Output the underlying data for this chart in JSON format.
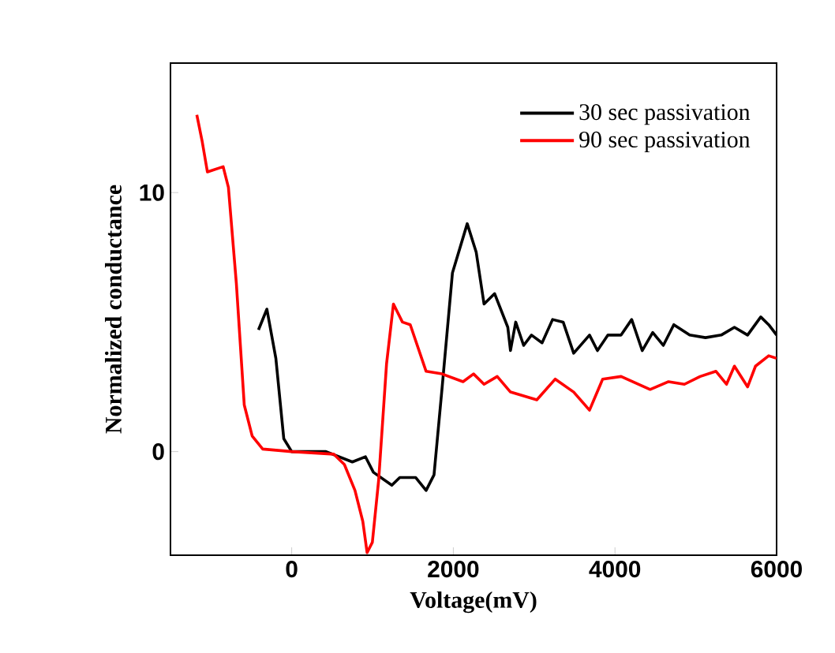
{
  "chart_data": {
    "type": "line",
    "xlabel": "Voltage(mV)",
    "ylabel": "Normalized conductance",
    "xlim": [
      -1500,
      6000
    ],
    "ylim": [
      -4,
      15
    ],
    "xticks": [
      0,
      2000,
      4000,
      6000
    ],
    "yticks": [
      0,
      10
    ],
    "legend": "top right",
    "grid": false,
    "marker": "none",
    "line_style": "solid",
    "series": [
      {
        "name": "30 sec passivation",
        "color": "#000000",
        "x": [
          -411,
          -307,
          -196,
          -98,
          0,
          424,
          750,
          913,
          1011,
          1239,
          1337,
          1533,
          1663,
          1761,
          1859,
          1989,
          2172,
          2283,
          2380,
          2511,
          2674,
          2707,
          2772,
          2870,
          2967,
          3098,
          3228,
          3359,
          3489,
          3685,
          3783,
          3913,
          4076,
          4207,
          4337,
          4467,
          4598,
          4728,
          4924,
          5120,
          5315,
          5478,
          5641,
          5804,
          5902,
          6000
        ],
        "values": [
          4.7,
          5.5,
          3.6,
          0.5,
          0,
          0,
          -0.4,
          -0.2,
          -0.8,
          -1.3,
          -1.0,
          -1.0,
          -1.5,
          -0.9,
          2.4,
          6.9,
          8.8,
          7.7,
          5.7,
          6.1,
          4.8,
          3.9,
          5.0,
          4.1,
          4.5,
          4.2,
          5.1,
          5.0,
          3.8,
          4.5,
          3.9,
          4.5,
          4.5,
          5.1,
          3.9,
          4.6,
          4.1,
          4.9,
          4.5,
          4.4,
          4.5,
          4.8,
          4.5,
          5.2,
          4.9,
          4.5
        ]
      },
      {
        "name": "90 sec passivation",
        "color": "#ff0000",
        "x": [
          -1174,
          -1109,
          -1043,
          -848,
          -783,
          -685,
          -587,
          -489,
          -359,
          0,
          522,
          652,
          783,
          880,
          933,
          998,
          1076,
          1174,
          1259,
          1370,
          1467,
          1663,
          1859,
          2120,
          2250,
          2380,
          2543,
          2707,
          3033,
          3261,
          3489,
          3685,
          3848,
          4076,
          4435,
          4663,
          4859,
          5054,
          5250,
          5380,
          5478,
          5641,
          5739,
          5902,
          6000
        ],
        "values": [
          13.0,
          12.0,
          10.8,
          11.0,
          10.2,
          6.5,
          1.8,
          0.6,
          0.1,
          0,
          -0.1,
          -0.5,
          -1.5,
          -2.7,
          -3.9,
          -3.5,
          -1.1,
          3.4,
          5.7,
          5.0,
          4.9,
          3.1,
          3.0,
          2.7,
          3.0,
          2.6,
          2.9,
          2.3,
          2.0,
          2.8,
          2.3,
          1.6,
          2.8,
          2.9,
          2.4,
          2.7,
          2.6,
          2.9,
          3.1,
          2.6,
          3.3,
          2.5,
          3.3,
          3.7,
          3.6
        ]
      }
    ]
  }
}
